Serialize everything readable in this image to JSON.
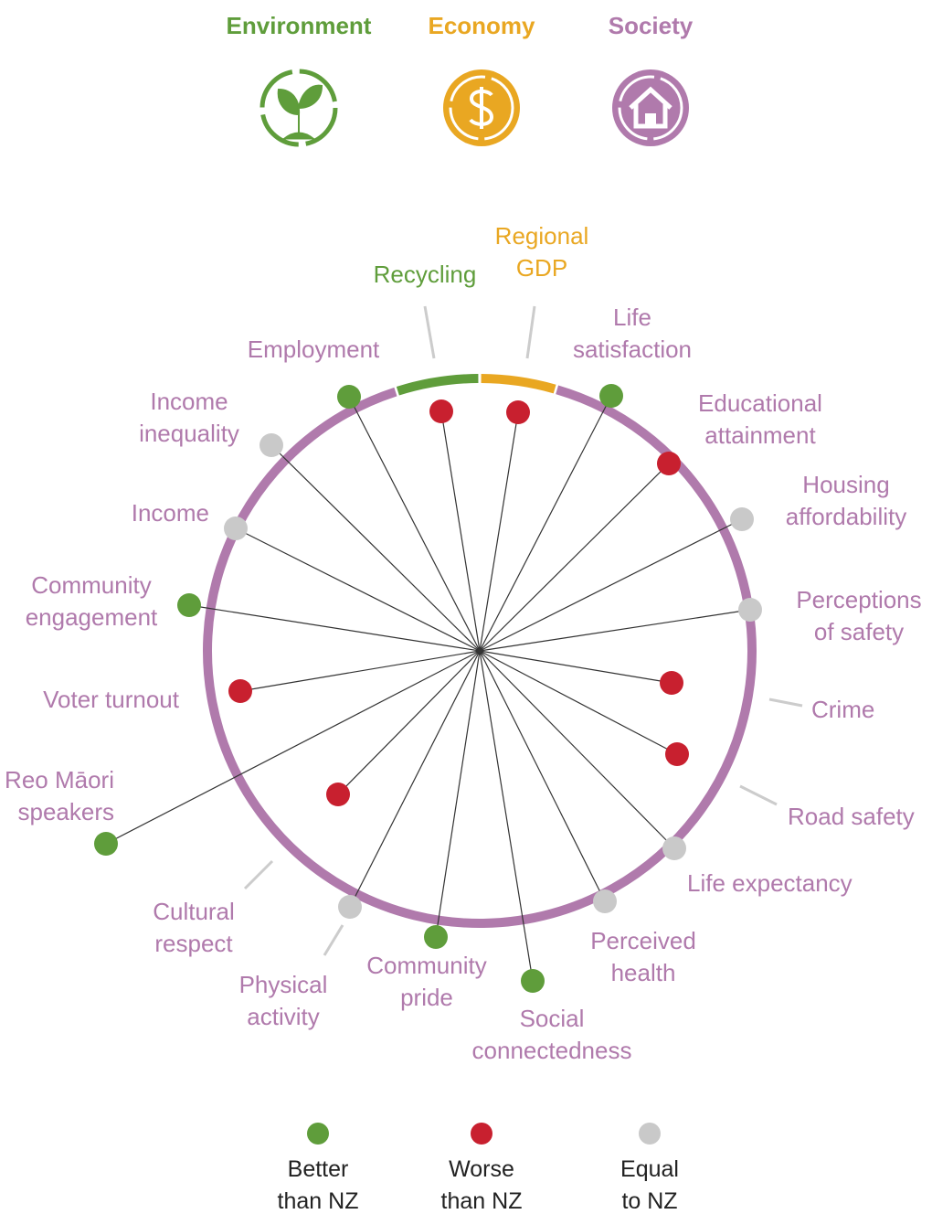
{
  "header": [
    {
      "label": "Environment",
      "color": "#5f9d3b"
    },
    {
      "label": "Economy",
      "color": "#e9a722"
    },
    {
      "label": "Society",
      "color": "#b07aac"
    }
  ],
  "indicators": [
    {
      "label": [
        "Recycling"
      ],
      "label_color": "#5f9d3b",
      "color": "#c8202f"
    },
    {
      "label": [
        "Regional",
        "GDP"
      ],
      "label_color": "#e9a722",
      "color": "#c8202f"
    },
    {
      "label": [
        "Life",
        "satisfaction"
      ],
      "label_color": "#b07aac",
      "color": "#5f9d3b"
    },
    {
      "label": [
        "Educational",
        "attainment"
      ],
      "label_color": "#b07aac",
      "color": "#c8202f"
    },
    {
      "label": [
        "Housing",
        "affordability"
      ],
      "label_color": "#b07aac",
      "color": "#c9c9c9"
    },
    {
      "label": [
        "Perceptions",
        "of safety"
      ],
      "label_color": "#b07aac",
      "color": "#c9c9c9"
    },
    {
      "label": [
        "Crime"
      ],
      "label_color": "#b07aac",
      "color": "#c8202f"
    },
    {
      "label": [
        "Road safety"
      ],
      "label_color": "#b07aac",
      "color": "#c8202f"
    },
    {
      "label": [
        "Life expectancy"
      ],
      "label_color": "#b07aac",
      "color": "#c9c9c9"
    },
    {
      "label": [
        "Perceived",
        "health"
      ],
      "label_color": "#b07aac",
      "color": "#c9c9c9"
    },
    {
      "label": [
        "Social",
        "connectedness"
      ],
      "label_color": "#b07aac",
      "color": "#5f9d3b"
    },
    {
      "label": [
        "Community",
        "pride"
      ],
      "label_color": "#b07aac",
      "color": "#5f9d3b"
    },
    {
      "label": [
        "Physical",
        "activity"
      ],
      "label_color": "#b07aac",
      "color": "#c9c9c9"
    },
    {
      "label": [
        "Cultural",
        "respect"
      ],
      "label_color": "#b07aac",
      "color": "#c8202f"
    },
    {
      "label": [
        "Te Reo Māori",
        "speakers"
      ],
      "label_color": "#b07aac",
      "color": "#5f9d3b"
    },
    {
      "label": [
        "Voter turnout"
      ],
      "label_color": "#b07aac",
      "color": "#c8202f"
    },
    {
      "label": [
        "Community",
        "engagement"
      ],
      "label_color": "#b07aac",
      "color": "#5f9d3b"
    },
    {
      "label": [
        "Income"
      ],
      "label_color": "#b07aac",
      "color": "#c9c9c9"
    },
    {
      "label": [
        "Income",
        "inequality"
      ],
      "label_color": "#b07aac",
      "color": "#c9c9c9"
    },
    {
      "label": [
        "Employment"
      ],
      "label_color": "#b07aac",
      "color": "#5f9d3b"
    }
  ],
  "legend": [
    {
      "label": [
        "Better",
        "than NZ"
      ],
      "color": "#5f9d3b"
    },
    {
      "label": [
        "Worse",
        "than NZ"
      ],
      "color": "#c8202f"
    },
    {
      "label": [
        "Equal",
        "to NZ"
      ],
      "color": "#c9c9c9"
    }
  ]
}
